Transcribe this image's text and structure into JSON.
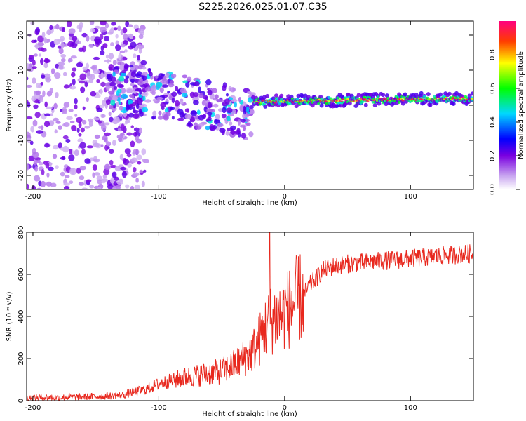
{
  "title": "S225.2026.025.01.07.C35",
  "chart_data": [
    {
      "type": "heatmap",
      "xlabel": "Height of straight line (km)",
      "ylabel": "Frequency (Hz)",
      "xlim": [
        -205,
        150
      ],
      "ylim": [
        -24,
        24
      ],
      "xticks": [
        "-200",
        "-100",
        "0",
        "100"
      ],
      "yticks": [
        "-20",
        "-10",
        "0",
        "10",
        "20"
      ],
      "colorbar": {
        "label": "Normalized spectral amplitude",
        "range": [
          0,
          1
        ],
        "ticks": [
          "0.0",
          "0.2",
          "0.4",
          "0.6",
          "0.8"
        ]
      },
      "features": [
        {
          "x_range": [
            -205,
            -110
          ],
          "y_range": [
            -24,
            24
          ],
          "level": 0.1,
          "note": "scattered background noise"
        },
        {
          "x_range": [
            -140,
            -25
          ],
          "y_center_start": 6,
          "y_center_end": -3,
          "level": 0.35,
          "note": "downward-sloping dispersed band"
        },
        {
          "x_range": [
            -25,
            150
          ],
          "y_center_start": 1,
          "y_center_end": 2,
          "level": 0.95,
          "note": "strong narrow line near 1-2 Hz"
        }
      ]
    },
    {
      "type": "line",
      "xlabel": "Height of straight line (km)",
      "ylabel": "SNR (10 * v/v)",
      "xlim": [
        -205,
        150
      ],
      "ylim": [
        0,
        800
      ],
      "xticks": [
        "-200",
        "-100",
        "0",
        "100"
      ],
      "yticks": [
        "0",
        "200",
        "400",
        "600",
        "800"
      ],
      "series": [
        {
          "name": "SNR",
          "color": "#e8281e",
          "x": [
            -205,
            -180,
            -150,
            -130,
            -120,
            -110,
            -100,
            -90,
            -80,
            -70,
            -60,
            -50,
            -40,
            -30,
            -25,
            -20,
            -15,
            -10,
            -5,
            0,
            5,
            10,
            15,
            20,
            25,
            30,
            40,
            50,
            60,
            70,
            80,
            90,
            100,
            110,
            120,
            130,
            140,
            150
          ],
          "y": [
            15,
            15,
            20,
            25,
            40,
            55,
            80,
            95,
            110,
            120,
            130,
            140,
            170,
            210,
            240,
            290,
            350,
            390,
            400,
            420,
            450,
            480,
            500,
            550,
            580,
            620,
            640,
            650,
            655,
            660,
            665,
            670,
            675,
            680,
            685,
            690,
            695,
            700
          ]
        }
      ],
      "spike": {
        "x": -12,
        "y": 800
      }
    }
  ]
}
